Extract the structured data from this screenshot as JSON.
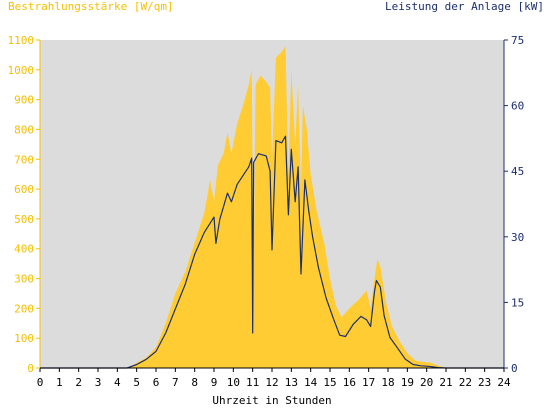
{
  "chart_data": {
    "type": "area",
    "left_axis_label": "Bestrahlungsstärke [W/qm]",
    "right_axis_label": "Leistung der Anlage [kW]",
    "xlabel": "Uhrzeit in Stunden",
    "xlim": [
      0,
      24
    ],
    "ylim_left": [
      0,
      1100
    ],
    "ylim_right": [
      0,
      75
    ],
    "x_ticks": [
      0,
      1,
      2,
      3,
      4,
      5,
      6,
      7,
      8,
      9,
      10,
      11,
      12,
      13,
      14,
      15,
      16,
      17,
      18,
      19,
      20,
      21,
      22,
      23,
      24
    ],
    "y_ticks_left": [
      0,
      100,
      200,
      300,
      400,
      500,
      600,
      700,
      800,
      900,
      1000,
      1100
    ],
    "y_ticks_right": [
      0,
      15,
      30,
      45,
      60,
      75
    ],
    "grid": false,
    "colors": {
      "plot_background": "#dcdcdc",
      "irradiance_fill": "#ffcc33",
      "power_line": "#1c2f6e",
      "left_axis": "#f5c000",
      "right_axis": "#1c2f6e"
    },
    "series": [
      {
        "name": "Bestrahlungsstärke [W/qm]",
        "axis": "left",
        "style": "area",
        "points": [
          [
            0,
            0
          ],
          [
            4.4,
            0
          ],
          [
            4.8,
            8
          ],
          [
            5.0,
            18
          ],
          [
            5.5,
            35
          ],
          [
            6.0,
            70
          ],
          [
            6.5,
            150
          ],
          [
            7.0,
            250
          ],
          [
            7.5,
            320
          ],
          [
            8.0,
            420
          ],
          [
            8.5,
            520
          ],
          [
            8.8,
            630
          ],
          [
            9.0,
            560
          ],
          [
            9.2,
            680
          ],
          [
            9.5,
            720
          ],
          [
            9.7,
            790
          ],
          [
            9.9,
            720
          ],
          [
            10.2,
            820
          ],
          [
            10.5,
            880
          ],
          [
            10.8,
            950
          ],
          [
            10.95,
            1000
          ],
          [
            11.05,
            300
          ],
          [
            11.15,
            950
          ],
          [
            11.4,
            980
          ],
          [
            11.7,
            960
          ],
          [
            11.9,
            940
          ],
          [
            12.0,
            700
          ],
          [
            12.2,
            1040
          ],
          [
            12.5,
            1060
          ],
          [
            12.7,
            1080
          ],
          [
            12.85,
            650
          ],
          [
            13.0,
            1000
          ],
          [
            13.2,
            750
          ],
          [
            13.35,
            950
          ],
          [
            13.5,
            600
          ],
          [
            13.6,
            880
          ],
          [
            13.8,
            800
          ],
          [
            14.0,
            650
          ],
          [
            14.3,
            530
          ],
          [
            14.7,
            420
          ],
          [
            15.0,
            300
          ],
          [
            15.3,
            210
          ],
          [
            15.6,
            170
          ],
          [
            16.0,
            200
          ],
          [
            16.5,
            230
          ],
          [
            16.9,
            260
          ],
          [
            17.1,
            200
          ],
          [
            17.3,
            300
          ],
          [
            17.45,
            365
          ],
          [
            17.6,
            340
          ],
          [
            17.9,
            220
          ],
          [
            18.2,
            140
          ],
          [
            18.6,
            90
          ],
          [
            19.0,
            50
          ],
          [
            19.4,
            25
          ],
          [
            19.8,
            20
          ],
          [
            20.2,
            18
          ],
          [
            20.6,
            8
          ],
          [
            21.0,
            0
          ],
          [
            24,
            0
          ]
        ]
      },
      {
        "name": "Leistung der Anlage [kW]",
        "axis": "right",
        "style": "line",
        "points": [
          [
            0,
            0
          ],
          [
            4.5,
            0
          ],
          [
            5.0,
            0.8
          ],
          [
            5.5,
            2.0
          ],
          [
            6.0,
            3.8
          ],
          [
            6.5,
            8.0
          ],
          [
            7.0,
            13.5
          ],
          [
            7.5,
            19.0
          ],
          [
            8.0,
            26.0
          ],
          [
            8.5,
            31.0
          ],
          [
            9.0,
            34.5
          ],
          [
            9.1,
            28.5
          ],
          [
            9.3,
            34.0
          ],
          [
            9.7,
            40.0
          ],
          [
            9.9,
            38.0
          ],
          [
            10.2,
            42.0
          ],
          [
            10.5,
            44.0
          ],
          [
            10.8,
            46.0
          ],
          [
            10.95,
            48.0
          ],
          [
            11.0,
            8.0
          ],
          [
            11.05,
            47.0
          ],
          [
            11.3,
            49.0
          ],
          [
            11.7,
            48.5
          ],
          [
            11.9,
            45.0
          ],
          [
            12.0,
            27.0
          ],
          [
            12.2,
            52.0
          ],
          [
            12.5,
            51.5
          ],
          [
            12.7,
            53.0
          ],
          [
            12.85,
            35.0
          ],
          [
            13.0,
            50.0
          ],
          [
            13.2,
            38.0
          ],
          [
            13.35,
            46.0
          ],
          [
            13.5,
            21.5
          ],
          [
            13.7,
            43.0
          ],
          [
            13.9,
            36.0
          ],
          [
            14.1,
            30.0
          ],
          [
            14.4,
            23.0
          ],
          [
            14.8,
            16.0
          ],
          [
            15.2,
            11.0
          ],
          [
            15.5,
            7.5
          ],
          [
            15.8,
            7.2
          ],
          [
            16.2,
            10.0
          ],
          [
            16.6,
            11.8
          ],
          [
            16.9,
            11.0
          ],
          [
            17.1,
            9.5
          ],
          [
            17.3,
            17.5
          ],
          [
            17.4,
            20.0
          ],
          [
            17.6,
            18.5
          ],
          [
            17.8,
            12.0
          ],
          [
            18.1,
            7.0
          ],
          [
            18.5,
            4.5
          ],
          [
            18.9,
            2.0
          ],
          [
            19.3,
            0.8
          ],
          [
            19.7,
            0.5
          ],
          [
            20.1,
            0.4
          ],
          [
            20.6,
            0.1
          ],
          [
            21.0,
            0
          ],
          [
            24,
            0
          ]
        ]
      }
    ]
  }
}
